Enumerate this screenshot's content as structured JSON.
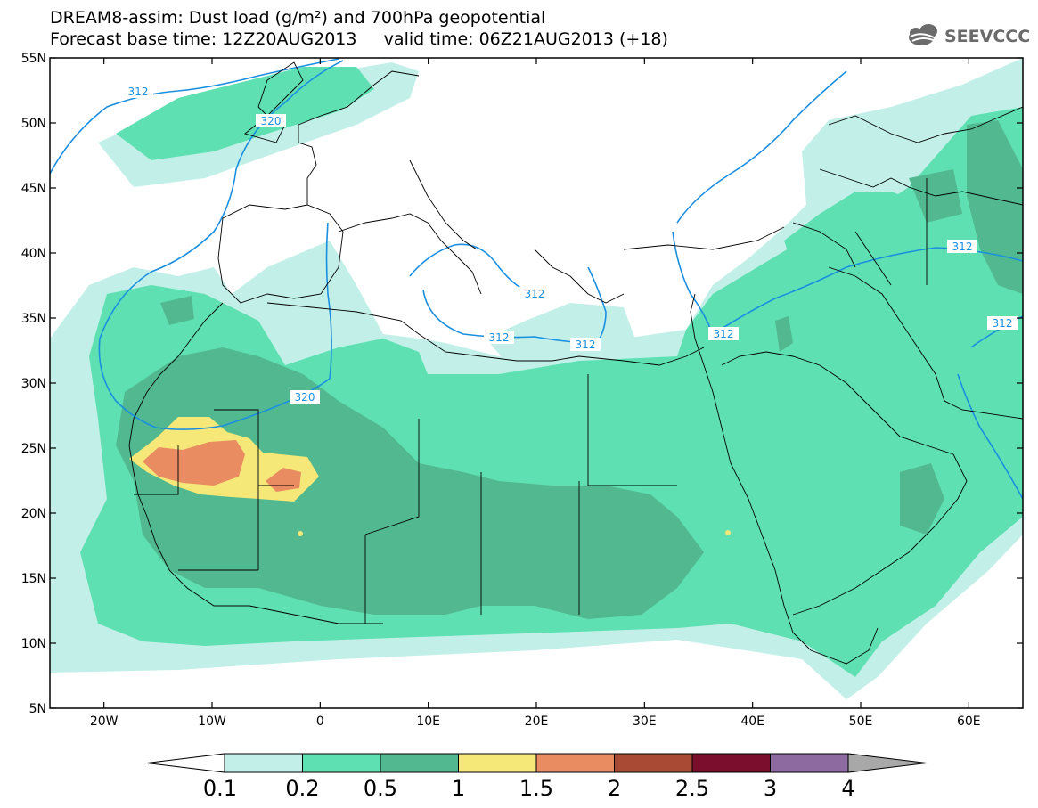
{
  "header": {
    "title_line1": "DREAM8-assim: Dust load (g/m²) and 700hPa geopotential",
    "title_line2": "Forecast base time: 12Z20AUG2013     valid time: 06Z21AUG2013 (+18)",
    "logo_text": "SEEVCCC",
    "logo_icon": "cloud-logo-icon"
  },
  "map": {
    "projection": "lat-lon",
    "lon_range": [
      -25,
      65
    ],
    "lat_range": [
      5,
      55
    ],
    "lat_ticks": [
      "55N",
      "50N",
      "45N",
      "40N",
      "35N",
      "30N",
      "25N",
      "20N",
      "15N",
      "10N",
      "5N"
    ],
    "lon_ticks": [
      "20W",
      "10W",
      "0",
      "10E",
      "20E",
      "30E",
      "40E",
      "50E",
      "60E"
    ],
    "contour_labels": [
      "312",
      "320",
      "312",
      "312",
      "312",
      "312",
      "312",
      "320",
      "312"
    ],
    "contour_color": "#1a8fe0"
  },
  "colorbar": {
    "ticks": [
      "0.1",
      "0.2",
      "0.5",
      "1",
      "1.5",
      "2",
      "2.5",
      "3",
      "4"
    ],
    "colors": [
      "#c2f0e8",
      "#5fe0b2",
      "#52b88f",
      "#f5e878",
      "#e98c62",
      "#a84a34",
      "#7a0e2c",
      "#8d6aa0"
    ],
    "under_color": "#ffffff",
    "over_color": "#a8a8a8"
  }
}
